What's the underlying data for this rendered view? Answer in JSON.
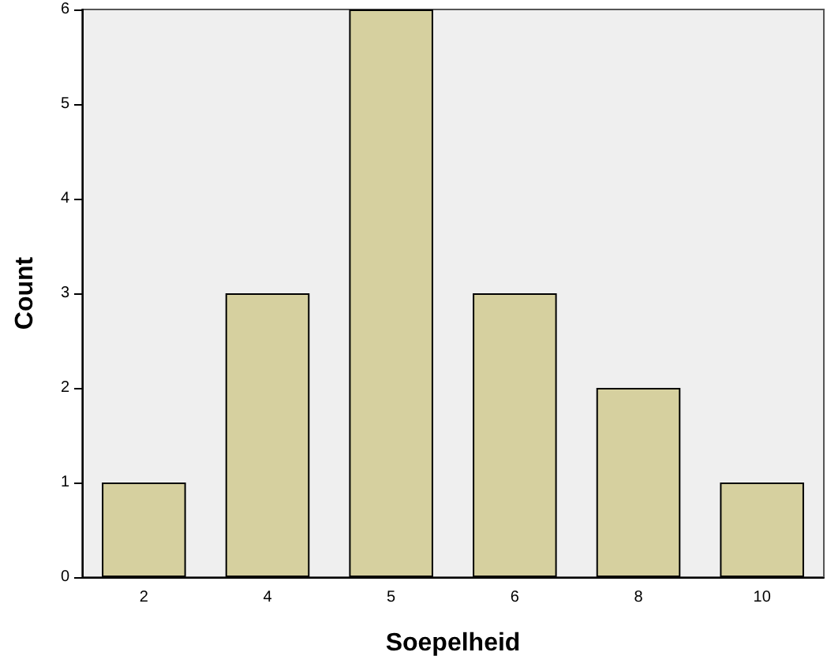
{
  "chart_data": {
    "type": "bar",
    "xlabel": "Soepelheid",
    "ylabel": "Count",
    "categories": [
      "2",
      "4",
      "5",
      "6",
      "8",
      "10"
    ],
    "values": [
      1,
      3,
      6,
      3,
      2,
      1
    ],
    "color": "#d6d09f",
    "ylim": [
      0,
      6
    ],
    "yticks": [
      0,
      1,
      2,
      3,
      4,
      5,
      6
    ],
    "grid": false
  }
}
